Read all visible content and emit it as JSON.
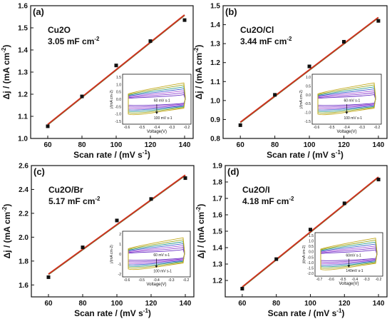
{
  "chart_data": [
    {
      "type": "scatter",
      "panel_label": "(a)",
      "sample": "Cu2O",
      "capacitance": "3.05 mF cm",
      "capacitance_exp": "-2",
      "xlabel": "Scan rate / (mV s",
      "xlabel_exp": "-1",
      "xlabel_end": ")",
      "ylabel": "Δj / (mA cm",
      "ylabel_exp": "-2",
      "ylabel_end": ")",
      "x": [
        60,
        80,
        100,
        120,
        140
      ],
      "y": [
        1.055,
        1.19,
        1.33,
        1.44,
        1.535
      ],
      "fit": [
        1.063,
        1.558
      ],
      "xlim": [
        50,
        145
      ],
      "ylim": [
        1.0,
        1.6
      ],
      "yticks": [
        1.0,
        1.1,
        1.2,
        1.3,
        1.4,
        1.5,
        1.6
      ],
      "xticks": [
        60,
        80,
        100,
        120,
        140
      ],
      "inset": {
        "ylabel": "j/(mA cm-2)",
        "xlabel": "Voltage(V)",
        "xticks": [
          "-0.6",
          "-0.5",
          "-0.4",
          "-0.3",
          "-0.2"
        ],
        "yticks": [
          "1.5",
          "1.0",
          "0.5",
          "0.0",
          "-0.5",
          "-1.0",
          "-1.5"
        ],
        "annot_top": "60 mV s-1",
        "annot_bottom": "100 mV s-1"
      }
    },
    {
      "type": "scatter",
      "panel_label": "(b)",
      "sample": "Cu2O/Cl",
      "capacitance": "3.44 mF cm",
      "capacitance_exp": "-2",
      "xlabel": "Scan rate / (mV s",
      "xlabel_exp": "-1",
      "xlabel_end": ")",
      "ylabel": "Δj / (mA cm",
      "ylabel_exp": "-2",
      "ylabel_end": ")",
      "x": [
        60,
        80,
        100,
        120,
        140
      ],
      "y": [
        0.87,
        1.03,
        1.18,
        1.31,
        1.42
      ],
      "fit": [
        0.885,
        1.438
      ],
      "xlim": [
        50,
        145
      ],
      "ylim": [
        0.8,
        1.5
      ],
      "yticks": [
        0.8,
        0.9,
        1.0,
        1.1,
        1.2,
        1.3,
        1.4,
        1.5
      ],
      "xticks": [
        60,
        80,
        100,
        120,
        140
      ],
      "inset": {
        "ylabel": "j/(mA cm-2)",
        "xlabel": "Voltage(V)",
        "xticks": [
          "-0.6",
          "-0.5",
          "-0.4",
          "-0.3",
          "-0.2"
        ],
        "yticks": [
          "1.0",
          "0.5",
          "0.0",
          "-0.5",
          "-1.0",
          "-1.5"
        ],
        "annot_top": "60 mV s-1",
        "annot_bottom": "100 mV s-1"
      }
    },
    {
      "type": "scatter",
      "panel_label": "(c)",
      "sample": "Cu2O/Br",
      "capacitance": "5.17 mF cm",
      "capacitance_exp": "-2",
      "xlabel": "Scan rate / (mV s",
      "xlabel_exp": "-1",
      "xlabel_end": ")",
      "ylabel": "Δj / (mA cm",
      "ylabel_exp": "-2",
      "ylabel_end": ")",
      "x": [
        60,
        80,
        100,
        120,
        140
      ],
      "y": [
        1.665,
        1.915,
        2.14,
        2.32,
        2.495
      ],
      "fit": [
        1.69,
        2.52
      ],
      "xlim": [
        50,
        145
      ],
      "ylim": [
        1.5,
        2.6
      ],
      "yticks": [
        1.6,
        1.8,
        2.0,
        2.2,
        2.4,
        2.6
      ],
      "xticks": [
        60,
        80,
        100,
        120,
        140
      ],
      "inset": {
        "ylabel": "j/(mA cm-2)",
        "xlabel": "Voltage(V)",
        "xticks": [
          "-0.6",
          "-0.5",
          "-0.4",
          "-0.3",
          "-0.2"
        ],
        "yticks": [
          "2",
          "1",
          "0",
          "-1",
          "-2"
        ],
        "annot_top": "60 mV s-1",
        "annot_bottom": "100 mV s-1"
      }
    },
    {
      "type": "scatter",
      "panel_label": "(d)",
      "sample": "Cu2O/I",
      "capacitance": "4.18 mF cm",
      "capacitance_exp": "-2",
      "xlabel": "Scan rate / (mV s",
      "xlabel_exp": "-1",
      "xlabel_end": ")",
      "ylabel": "Δj / (mA cm",
      "ylabel_exp": "-2",
      "ylabel_end": ")",
      "x": [
        60,
        80,
        100,
        120,
        140
      ],
      "y": [
        1.15,
        1.33,
        1.51,
        1.67,
        1.815
      ],
      "fit": [
        1.16,
        1.83
      ],
      "xlim": [
        50,
        145
      ],
      "ylim": [
        1.1,
        1.9
      ],
      "yticks": [
        1.2,
        1.3,
        1.4,
        1.5,
        1.6,
        1.7,
        1.8,
        1.9
      ],
      "xticks": [
        60,
        80,
        100,
        120,
        140
      ],
      "inset": {
        "ylabel": "j/(mA cm-2)",
        "xlabel": "Voltage(V)",
        "xticks": [
          "-0.7",
          "-0.6",
          "-0.5",
          "-0.4",
          "-0.3",
          "-0.2"
        ],
        "yticks": [
          "1.5",
          "1.0",
          "0.5",
          "0.0",
          "-0.5",
          "-1.0",
          "-1.5",
          "-2.0"
        ],
        "annot_top": "60mV s-1",
        "annot_bottom": "140mV s-1"
      }
    }
  ],
  "colors": {
    "fit_line": "#d2301e",
    "data_point": "#111111",
    "cv_curves": [
      "#6a2ec4",
      "#8a3fd0",
      "#a855d8",
      "#3c5fd0",
      "#2b9a8c",
      "#9aa61e",
      "#c3a91a"
    ]
  }
}
